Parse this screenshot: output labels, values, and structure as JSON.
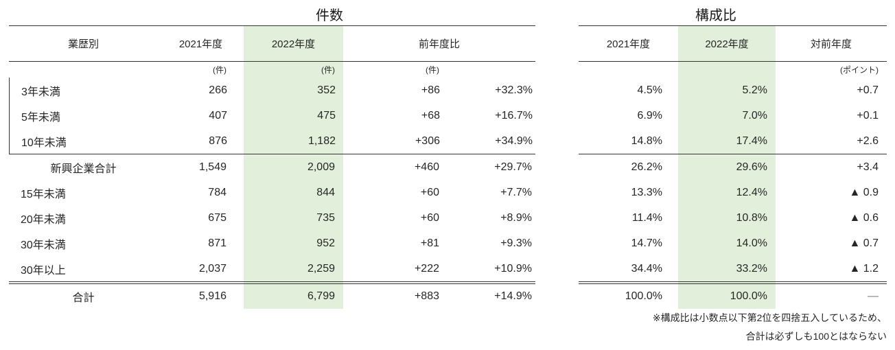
{
  "colors": {
    "highlight_green": "#e2efda",
    "rule": "#333333",
    "text": "#262626",
    "muted_dash": "#7f7f7f"
  },
  "count_table": {
    "title": "件数",
    "columns": {
      "row_header": "業歴別",
      "fy2021": "2021年度",
      "fy2022": "2022年度",
      "yoy": "前年度比"
    },
    "units": {
      "fy2021": "(件)",
      "fy2022": "(件)",
      "yoy_diff": "(件)"
    }
  },
  "ratio_table": {
    "title": "構成比",
    "columns": {
      "fy2021": "2021年度",
      "fy2022": "2022年度",
      "vs_prev_year": "対前年度"
    },
    "units": {
      "vs_prev_year": "(ポイント)"
    }
  },
  "rows": [
    {
      "label": "3年未満",
      "count_2021": "266",
      "count_2022": "352",
      "diff": "+86",
      "pct": "+32.3%",
      "ratio_2021": "4.5%",
      "ratio_2022": "5.2%",
      "point": "+0.7"
    },
    {
      "label": "5年未満",
      "count_2021": "407",
      "count_2022": "475",
      "diff": "+68",
      "pct": "+16.7%",
      "ratio_2021": "6.9%",
      "ratio_2022": "7.0%",
      "point": "+0.1"
    },
    {
      "label": "10年未満",
      "count_2021": "876",
      "count_2022": "1,182",
      "diff": "+306",
      "pct": "+34.9%",
      "ratio_2021": "14.8%",
      "ratio_2022": "17.4%",
      "point": "+2.6"
    },
    {
      "label": "新興企業合計",
      "count_2021": "1,549",
      "count_2022": "2,009",
      "diff": "+460",
      "pct": "+29.7%",
      "ratio_2021": "26.2%",
      "ratio_2022": "29.6%",
      "point": "+3.4"
    },
    {
      "label": "15年未満",
      "count_2021": "784",
      "count_2022": "844",
      "diff": "+60",
      "pct": "+7.7%",
      "ratio_2021": "13.3%",
      "ratio_2022": "12.4%",
      "point": "▲ 0.9"
    },
    {
      "label": "20年未満",
      "count_2021": "675",
      "count_2022": "735",
      "diff": "+60",
      "pct": "+8.9%",
      "ratio_2021": "11.4%",
      "ratio_2022": "10.8%",
      "point": "▲ 0.6"
    },
    {
      "label": "30年未満",
      "count_2021": "871",
      "count_2022": "952",
      "diff": "+81",
      "pct": "+9.3%",
      "ratio_2021": "14.7%",
      "ratio_2022": "14.0%",
      "point": "▲ 0.7"
    },
    {
      "label": "30年以上",
      "count_2021": "2,037",
      "count_2022": "2,259",
      "diff": "+222",
      "pct": "+10.9%",
      "ratio_2021": "34.4%",
      "ratio_2022": "33.2%",
      "point": "▲ 1.2"
    }
  ],
  "total": {
    "label": "合計",
    "count_2021": "5,916",
    "count_2022": "6,799",
    "diff": "+883",
    "pct": "+14.9%",
    "ratio_2021": "100.0%",
    "ratio_2022": "100.0%",
    "point": "—"
  },
  "footnote": {
    "line1": "※構成比は小数点以下第2位を四捨五入しているため、",
    "line2": "合計は必ずしも100とはならない"
  }
}
